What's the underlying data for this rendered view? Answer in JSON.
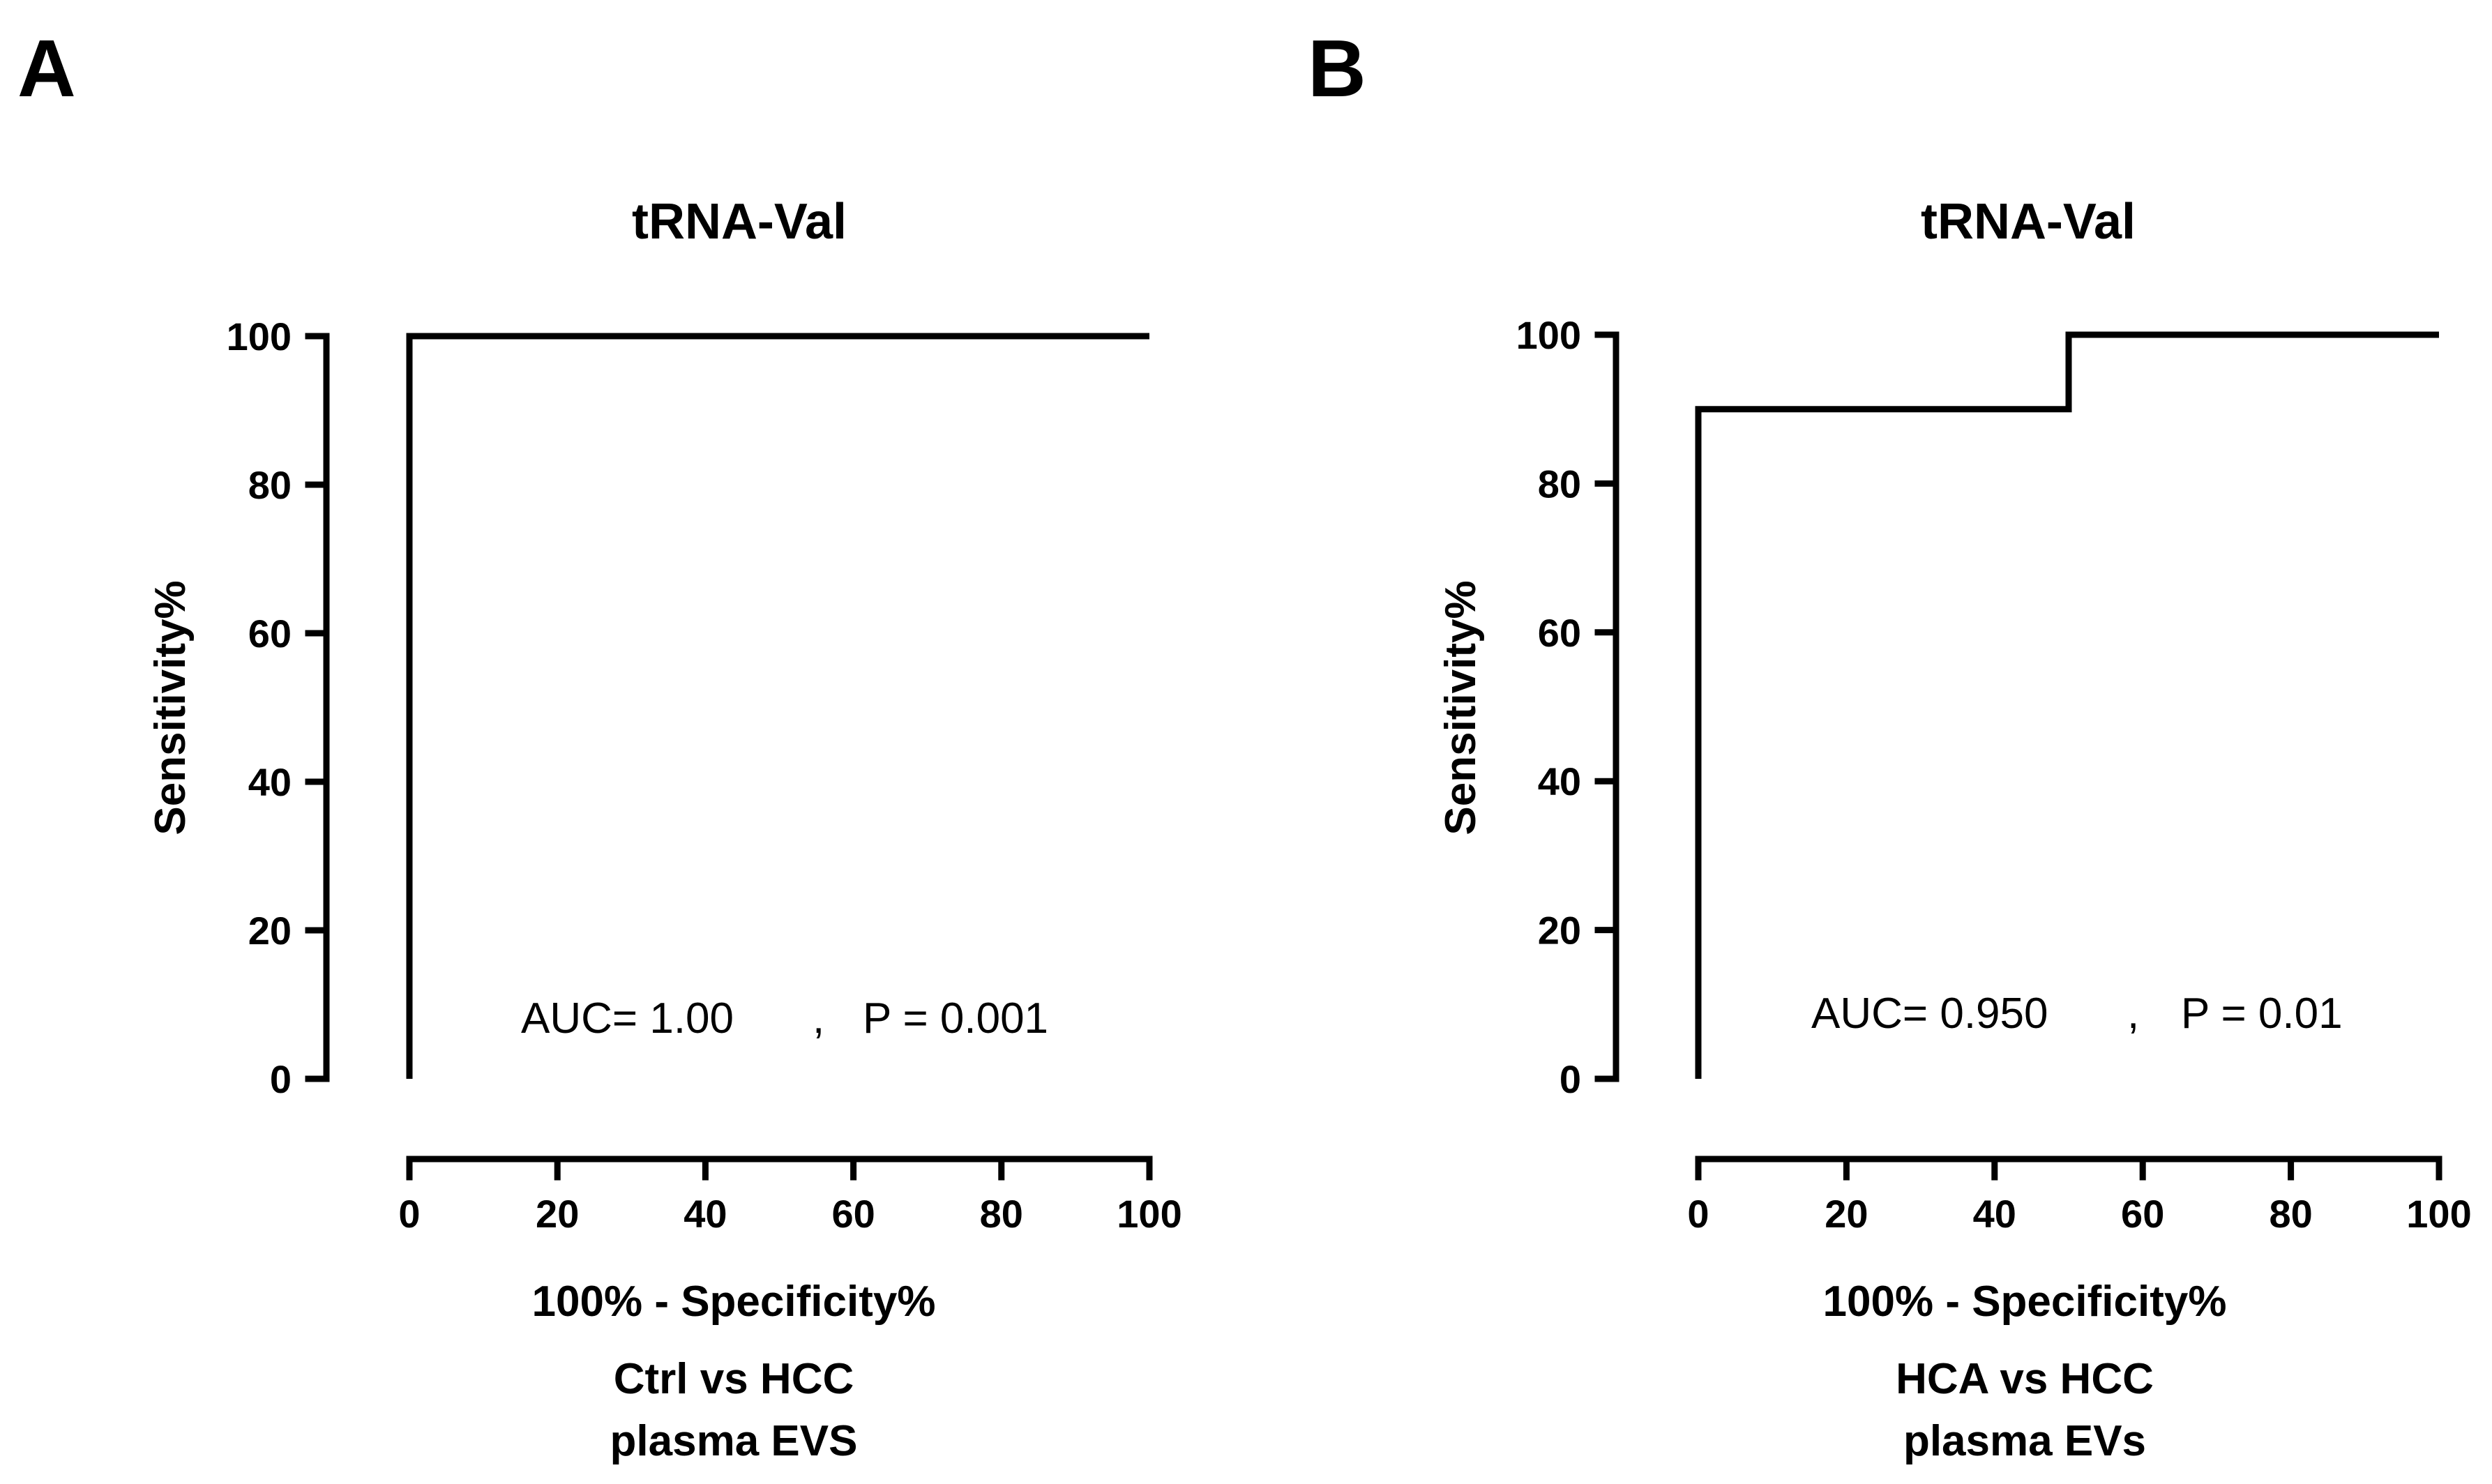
{
  "chart_data": [
    {
      "type": "line",
      "panel_label": "A",
      "title": "tRNA-Val",
      "xlabel": "100% - Specificity%",
      "ylabel": "Sensitivity%",
      "subtitle_lines": [
        "Ctrl vs HCC",
        "plasma EVS"
      ],
      "xlim": [
        0,
        100
      ],
      "ylim": [
        0,
        100
      ],
      "xticks": [
        0,
        20,
        40,
        60,
        80,
        100
      ],
      "yticks": [
        0,
        20,
        40,
        60,
        80,
        100
      ],
      "series": [
        {
          "x": [
            0,
            0,
            100
          ],
          "y": [
            0,
            100,
            100
          ]
        }
      ],
      "annotation": {
        "auc": "AUC= 1.00",
        "sep": ",",
        "p": "P = 0.001"
      },
      "grid": false,
      "line_color": "#000000"
    },
    {
      "type": "line",
      "panel_label": "B",
      "title": "tRNA-Val",
      "xlabel": "100% - Specificity%",
      "ylabel": "Sensitivity%",
      "subtitle_lines": [
        "HCA vs HCC",
        "plasma EVs"
      ],
      "xlim": [
        0,
        100
      ],
      "ylim": [
        0,
        100
      ],
      "xticks": [
        0,
        20,
        40,
        60,
        80,
        100
      ],
      "yticks": [
        0,
        20,
        40,
        60,
        80,
        100
      ],
      "series": [
        {
          "x": [
            0,
            0,
            50,
            50,
            100
          ],
          "y": [
            0,
            90,
            90,
            100,
            100
          ]
        }
      ],
      "annotation": {
        "auc": "AUC= 0.950",
        "sep": ",",
        "p": "P = 0.01"
      },
      "grid": false,
      "line_color": "#000000"
    }
  ]
}
